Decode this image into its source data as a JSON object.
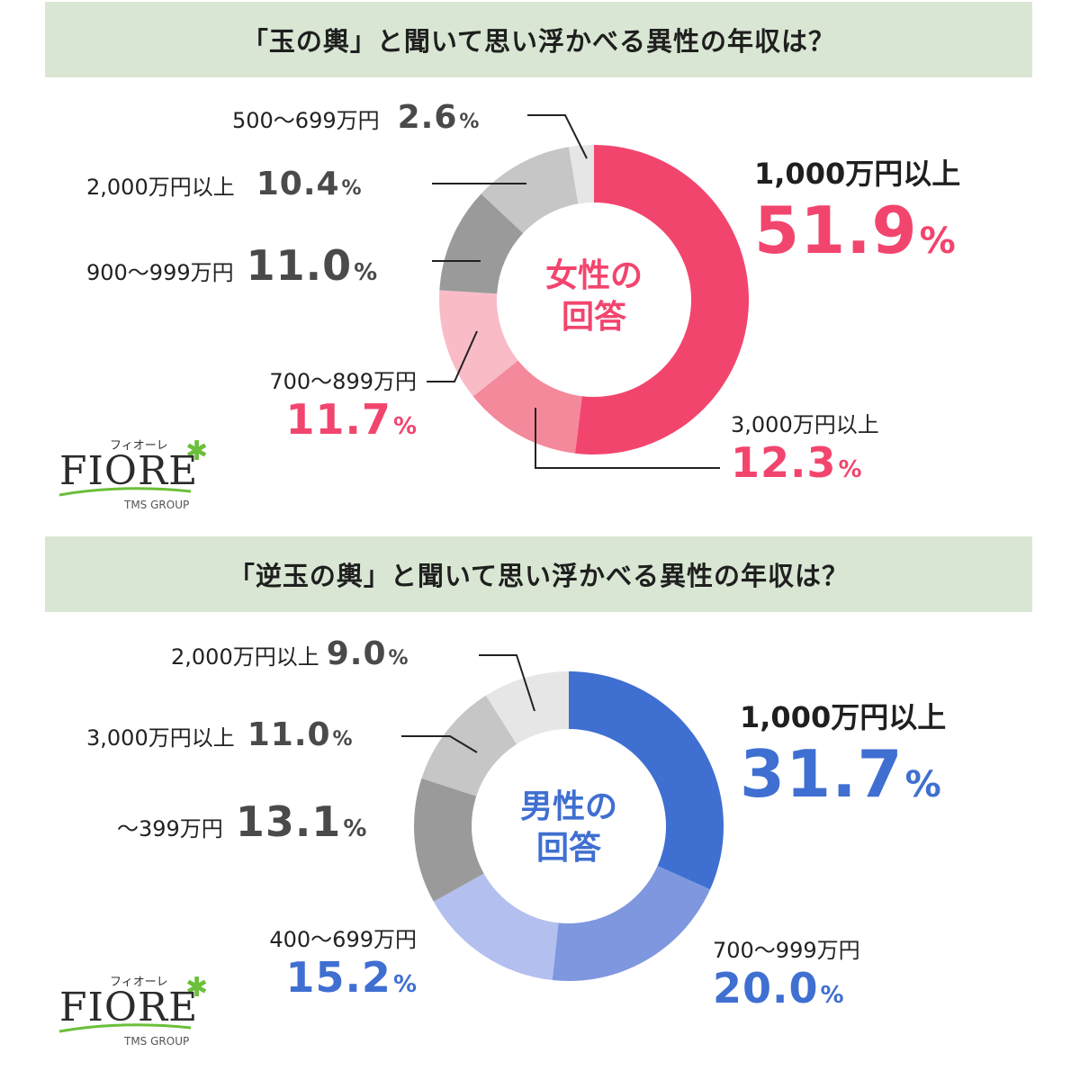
{
  "charts": [
    {
      "title": "「玉の輿」と聞いて思い浮かべる異性の年収は？",
      "center_line1": "女性の",
      "center_line2": "回答",
      "accent": "#f2456e",
      "labels": [
        {
          "name": "1,000万円以上",
          "value": "51.9",
          "pct": "%"
        },
        {
          "name": "3,000万円以上",
          "value": "12.3",
          "pct": "%"
        },
        {
          "name": "700〜899万円",
          "value": "11.7",
          "pct": "%"
        },
        {
          "name": "900〜999万円",
          "value": "11.0",
          "pct": "%"
        },
        {
          "name": "2,000万円以上",
          "value": "10.4",
          "pct": "%"
        },
        {
          "name": "500〜699万円",
          "value": "2.6",
          "pct": "%"
        }
      ]
    },
    {
      "title": "「逆玉の輿」と聞いて思い浮かべる異性の年収は？",
      "center_line1": "男性の",
      "center_line2": "回答",
      "accent": "#3f6fd1",
      "labels": [
        {
          "name": "1,000万円以上",
          "value": "31.7",
          "pct": "%"
        },
        {
          "name": "700〜999万円",
          "value": "20.0",
          "pct": "%"
        },
        {
          "name": "400〜699万円",
          "value": "15.2",
          "pct": "%"
        },
        {
          "name": "〜399万円",
          "value": "13.1",
          "pct": "%"
        },
        {
          "name": "3,000万円以上",
          "value": "11.0",
          "pct": "%"
        },
        {
          "name": "2,000万円以上",
          "value": "9.0",
          "pct": "%"
        }
      ]
    }
  ],
  "logo": {
    "kana": "フィオーレ",
    "word": "FIORE",
    "group": "TMS GROUP"
  },
  "chart_data": [
    {
      "type": "pie",
      "title": "「玉の輿」と聞いて思い浮かべる異性の年収は？",
      "categories": [
        "1,000万円以上",
        "3,000万円以上",
        "700〜899万円",
        "900〜999万円",
        "2,000万円以上",
        "500〜699万円"
      ],
      "values": [
        51.9,
        12.3,
        11.7,
        11.0,
        10.4,
        2.6
      ],
      "colors": [
        "#f2456e",
        "#f4899c",
        "#f9bcc7",
        "#9a9a9a",
        "#c6c6c6",
        "#e6e6e6"
      ],
      "center_label": "女性の回答"
    },
    {
      "type": "pie",
      "title": "「逆玉の輿」と聞いて思い浮かべる異性の年収は？",
      "categories": [
        "1,000万円以上",
        "700〜999万円",
        "400〜699万円",
        "〜399万円",
        "3,000万円以上",
        "2,000万円以上"
      ],
      "values": [
        31.7,
        20.0,
        15.2,
        13.1,
        11.0,
        9.0
      ],
      "colors": [
        "#3f6fd1",
        "#7f97de",
        "#b3c0ef",
        "#9a9a9a",
        "#c6c6c6",
        "#e6e6e6"
      ],
      "center_label": "男性の回答"
    }
  ]
}
